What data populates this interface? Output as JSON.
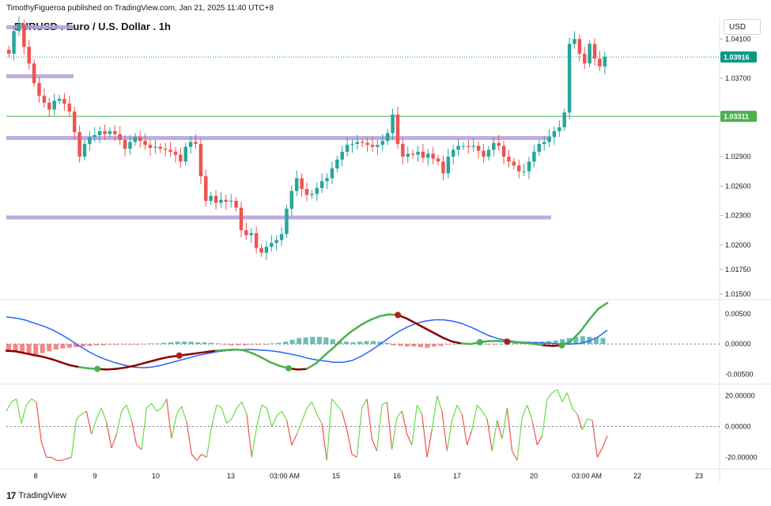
{
  "header": {
    "published": "TimothyFigueroa published on TradingView.com, Jan 21, 2025 11:40 UTC+8",
    "title": "EURUSD . Euro / U.S. Dollar . 1h",
    "currency_button": "USD"
  },
  "footer": {
    "brand": "TradingView",
    "logo": "17"
  },
  "colors": {
    "up": "#26a69a",
    "down": "#ef5350",
    "zone": "#b39ddb",
    "hline": "#4caf50",
    "price_tag": "#089981",
    "hline_tag": "#4caf50",
    "macd_fast": "#4caf50",
    "macd_slow": "#8b0000",
    "signal": "#2962ff",
    "osc_up": "#66dd44",
    "osc_down": "#ef5350"
  },
  "chart_data": [
    {
      "type": "candlestick",
      "name": "price",
      "y_ticks": [
        "1.04100",
        "1.03700",
        "1.02900",
        "1.02600",
        "1.02300",
        "1.02000",
        "1.01750",
        "1.01500"
      ],
      "y_tick_values": [
        1.041,
        1.037,
        1.029,
        1.026,
        1.023,
        1.02,
        1.0175,
        1.015
      ],
      "ylim": [
        1.0145,
        1.0432
      ],
      "last_price": "1.03916",
      "horizontal_line": "1.03311",
      "zones": [
        {
          "value": 1.0422,
          "x_end": "8 12:00"
        },
        {
          "value": 1.0372,
          "x_end": "8 12:00"
        },
        {
          "value": 1.0309,
          "x_end": "20 05:00"
        },
        {
          "value": 1.0228,
          "x_end": "20 05:00"
        }
      ],
      "closes": [
        1.0395,
        1.0418,
        1.0425,
        1.0402,
        1.0385,
        1.0365,
        1.0352,
        1.0345,
        1.0338,
        1.0347,
        1.0349,
        1.0344,
        1.0336,
        1.0315,
        1.029,
        1.0303,
        1.031,
        1.0312,
        1.0316,
        1.0313,
        1.0316,
        1.0313,
        1.0307,
        1.0298,
        1.0305,
        1.031,
        1.0306,
        1.0302,
        1.0299,
        1.03,
        1.0298,
        1.0297,
        1.0295,
        1.0292,
        1.0285,
        1.03,
        1.0305,
        1.0303,
        1.027,
        1.0245,
        1.025,
        1.0243,
        1.0246,
        1.0244,
        1.0245,
        1.0238,
        1.0215,
        1.021,
        1.0212,
        1.0197,
        1.0192,
        1.0198,
        1.0202,
        1.0205,
        1.0211,
        1.0237,
        1.0255,
        1.0268,
        1.0257,
        1.0251,
        1.0252,
        1.0258,
        1.0265,
        1.0268,
        1.0278,
        1.0287,
        1.0295,
        1.0302,
        1.0303,
        1.0305,
        1.0304,
        1.0302,
        1.03,
        1.0302,
        1.0306,
        1.0314,
        1.0333,
        1.0303,
        1.029,
        1.0293,
        1.0292,
        1.0295,
        1.0289,
        1.0293,
        1.0288,
        1.0285,
        1.0273,
        1.029,
        1.0297,
        1.0301,
        1.0301,
        1.03,
        1.0301,
        1.0296,
        1.029,
        1.0297,
        1.0304,
        1.0301,
        1.029,
        1.0285,
        1.0281,
        1.0275,
        1.0275,
        1.0285,
        1.0295,
        1.0303,
        1.0305,
        1.031,
        1.0316,
        1.032,
        1.0335,
        1.0405,
        1.041,
        1.0395,
        1.0385,
        1.0405,
        1.039,
        1.0382,
        1.0392
      ]
    },
    {
      "type": "line",
      "name": "macd",
      "y_ticks": [
        "0.00500",
        "0.00000",
        "-0.00500"
      ],
      "y_tick_values": [
        0.005,
        0.0,
        -0.005
      ],
      "ylim": [
        -0.0065,
        0.0072
      ],
      "series": [
        {
          "values": [
            -0.0011,
            -0.0012,
            -0.0015,
            -0.0018,
            -0.0021,
            -0.0025,
            -0.003,
            -0.0035,
            -0.0038,
            -0.004,
            -0.0041,
            -0.0042,
            -0.0041,
            -0.0039,
            -0.0036,
            -0.0032,
            -0.0028,
            -0.0024,
            -0.0021,
            -0.0019,
            -0.0017,
            -0.0015,
            -0.0013,
            -0.0011,
            -0.001,
            -0.0009,
            -0.001,
            -0.0015,
            -0.0022,
            -0.003,
            -0.0036,
            -0.004,
            -0.0042,
            -0.0041,
            -0.0032,
            -0.0018,
            -0.0005,
            0.001,
            0.0022,
            0.0032,
            0.004,
            0.0046,
            0.0049,
            0.0048,
            0.0042,
            0.0034,
            0.0026,
            0.0018,
            0.001,
            0.0004,
            0.0001,
            0.0,
            0.0003,
            0.0005,
            0.0005,
            0.0004,
            0.0003,
            0.0002,
            0.0,
            -0.0002,
            -0.0003,
            -0.0002,
            0.0005,
            0.002,
            0.004,
            0.0058,
            0.0068
          ]
        },
        {
          "values": [
            0.0055,
            0.005,
            0.0038,
            0.002,
            0.0003,
            -0.001,
            -0.002,
            -0.0028,
            -0.0035,
            -0.004,
            -0.0042,
            -0.004,
            -0.0035,
            -0.003,
            -0.0025,
            -0.002,
            -0.0017,
            -0.0015,
            -0.0013,
            -0.0012,
            -0.001,
            -0.0008,
            -0.0007,
            -0.0008,
            -0.001,
            -0.0013,
            -0.0018,
            -0.0024,
            -0.003,
            -0.0035,
            -0.0038,
            -0.004,
            -0.004,
            -0.0038,
            -0.0032,
            -0.0023,
            -0.0012,
            0.0,
            0.0012,
            0.0022,
            0.0032,
            0.004,
            0.0044,
            0.0046,
            0.0044,
            0.0038,
            0.003,
            0.0022,
            0.0014,
            0.0007,
            0.0002,
            -0.0001,
            0.0,
            0.0001,
            0.0002,
            0.0002,
            0.0001,
            0.0,
            -0.0001,
            -0.0002,
            -0.0002,
            -0.0001,
            0.0003,
            0.0014,
            0.003,
            0.0046,
            0.0058
          ]
        },
        {
          "values": [
            0.0045,
            0.0043,
            0.004,
            0.0035,
            0.003,
            0.0024,
            0.0016,
            0.0007,
            -0.0003,
            -0.0012,
            -0.002,
            -0.0026,
            -0.0031,
            -0.0035,
            -0.0038,
            -0.0039,
            -0.0038,
            -0.0035,
            -0.0031,
            -0.0027,
            -0.0023,
            -0.0019,
            -0.0016,
            -0.0013,
            -0.0011,
            -0.001,
            -0.0009,
            -0.0009,
            -0.001,
            -0.0011,
            -0.0013,
            -0.0016,
            -0.0019,
            -0.0023,
            -0.0026,
            -0.0028,
            -0.003,
            -0.003,
            -0.0027,
            -0.002,
            -0.0011,
            -0.0001,
            0.001,
            0.002,
            0.0028,
            0.0034,
            0.0038,
            0.004,
            0.004,
            0.0038,
            0.0034,
            0.0028,
            0.0021,
            0.0014,
            0.0009,
            0.0006,
            0.0004,
            0.0003,
            0.0002,
            0.0002,
            0.0001,
            0.0,
            0.0,
            0.0001,
            0.0005,
            0.0012,
            0.0023
          ]
        }
      ],
      "histogram": [
        -0.0011,
        -0.0012,
        -0.0014,
        -0.0016,
        -0.0017,
        -0.0015,
        -0.0012,
        -0.0009,
        -0.0007,
        -0.0006,
        -0.0005,
        -0.0004,
        -0.0003,
        -0.0002,
        -0.0002,
        -0.0001,
        -0.0001,
        -0.0001,
        -0.0001,
        -0.0001,
        0.0,
        0.0001,
        0.0001,
        0.0002,
        0.0003,
        0.0004,
        0.0004,
        0.0004,
        0.0003,
        0.0003,
        0.0002,
        0.0001,
        -0.0001,
        -0.0002,
        -0.0002,
        -0.0002,
        -0.0001,
        -0.0001,
        -0.0001,
        0.0001,
        0.0002,
        0.0004,
        0.0007,
        0.001,
        0.0011,
        0.0012,
        0.0012,
        0.0011,
        0.0008,
        0.0005,
        0.0004,
        0.0003,
        0.0004,
        0.0005,
        0.0005,
        0.0004,
        0.0002,
        -0.0002,
        -0.0003,
        -0.0004,
        -0.0004,
        -0.0005,
        -0.0006,
        -0.0004,
        -0.0003,
        -0.0001,
        0.0,
        0.0002,
        0.0001,
        0.0001,
        0.0,
        -0.0001,
        -0.0001,
        0.0,
        0.0001,
        0.0002,
        0.0003,
        0.0004,
        0.0004,
        0.0004,
        0.0005,
        0.0006,
        0.0008,
        0.001,
        0.0012,
        0.0013,
        0.0012,
        0.0011,
        0.001
      ],
      "markers": [
        {
          "index": 10,
          "color": "#4caf50"
        },
        {
          "index": 19,
          "color": "#b71c1c"
        },
        {
          "index": 31,
          "color": "#4caf50"
        },
        {
          "index": 43,
          "color": "#b71c1c"
        },
        {
          "index": 52,
          "color": "#4caf50"
        },
        {
          "index": 55,
          "color": "#b71c1c"
        },
        {
          "index": 61,
          "color": "#4caf50"
        }
      ]
    },
    {
      "type": "line",
      "name": "oscillator",
      "y_ticks": [
        "20.00000",
        "0.00000",
        "-20.00000"
      ],
      "y_tick_values": [
        20,
        0,
        -20
      ],
      "ylim": [
        -27,
        27
      ],
      "values": [
        10,
        16,
        18,
        2,
        14,
        18,
        16,
        -10,
        -20,
        -20,
        -22,
        -22,
        -21,
        -20,
        5,
        8,
        10,
        -5,
        5,
        12,
        3,
        -14,
        -5,
        10,
        14,
        4,
        -12,
        -15,
        12,
        15,
        10,
        12,
        18,
        -8,
        8,
        13,
        3,
        -18,
        -22,
        -18,
        -20,
        0,
        14,
        12,
        2,
        5,
        12,
        16,
        8,
        -20,
        0,
        14,
        12,
        0,
        7,
        10,
        4,
        -12,
        -5,
        3,
        12,
        16,
        8,
        2,
        -22,
        18,
        14,
        10,
        -2,
        -18,
        -20,
        12,
        18,
        -8,
        -16,
        14,
        16,
        -15,
        6,
        10,
        -5,
        -12,
        14,
        8,
        -20,
        -2,
        20,
        10,
        -16,
        4,
        14,
        8,
        -12,
        -2,
        14,
        10,
        5,
        -16,
        4,
        -8,
        12,
        -16,
        -22,
        6,
        14,
        4,
        -12,
        -6,
        18,
        22,
        24,
        16,
        22,
        12,
        8,
        -2,
        5,
        4,
        -20,
        -14,
        -6
      ],
      "x_ticks": [
        "8",
        "9",
        "10",
        "13",
        "03:00 AM",
        "15",
        "16",
        "17",
        "20",
        "03:00 AM",
        "22",
        "23"
      ]
    }
  ]
}
